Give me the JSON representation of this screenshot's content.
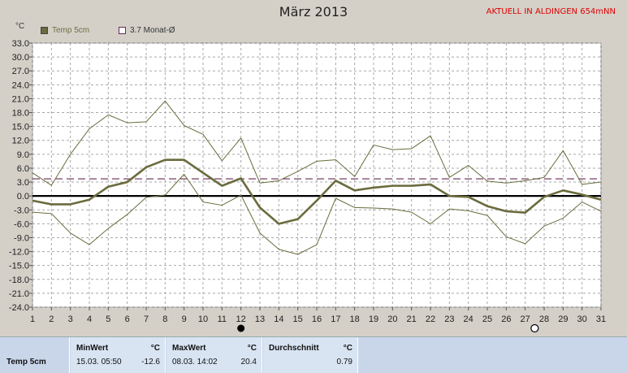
{
  "header": {
    "title": "März 2013",
    "station": "AKTUELL IN ALDINGEN 654mNN",
    "unit": "°C"
  },
  "legend": [
    {
      "label": "Temp 5cm"
    },
    {
      "label": "3.7 Monat-Ø"
    }
  ],
  "chart_data": {
    "type": "line",
    "title": "März 2013",
    "ylim": [
      -24,
      33
    ],
    "yticks": [
      "33.0",
      "30.0",
      "27.0",
      "24.0",
      "21.0",
      "18.0",
      "15.0",
      "12.0",
      "9.0",
      "6.0",
      "3.0",
      "0.0",
      "-3.0",
      "-6.0",
      "-9.0",
      "-12.0",
      "-15.0",
      "-18.0",
      "-21.0",
      "-24.0"
    ],
    "x": [
      1,
      2,
      3,
      4,
      5,
      6,
      7,
      8,
      9,
      10,
      11,
      12,
      13,
      14,
      15,
      16,
      17,
      18,
      19,
      20,
      21,
      22,
      23,
      24,
      25,
      26,
      27,
      28,
      29,
      30,
      31
    ],
    "series": [
      {
        "name": "Temp 5cm",
        "color": "#6b6b3e",
        "values": [
          -1.0,
          -1.8,
          -1.8,
          -0.8,
          2.0,
          3.0,
          6.2,
          7.8,
          7.8,
          5.0,
          2.2,
          3.8,
          -2.5,
          -6.0,
          -5.0,
          -1.0,
          3.3,
          1.2,
          1.8,
          2.2,
          2.2,
          2.5,
          0.0,
          -0.2,
          -2.2,
          -3.3,
          -3.6,
          -0.2,
          1.2,
          0.3,
          -0.8
        ]
      },
      {
        "color": "#6b6b3e",
        "values": [
          5.0,
          2.3,
          9.0,
          14.5,
          17.5,
          15.8,
          16.0,
          20.5,
          15.2,
          13.3,
          7.6,
          12.5,
          2.8,
          3.3,
          5.3,
          7.5,
          7.8,
          4.2,
          11.0,
          10.0,
          10.2,
          13.0,
          4.0,
          6.6,
          3.2,
          2.8,
          3.3,
          4.0,
          9.8,
          2.5,
          3.0
        ]
      },
      {
        "color": "#6b6b3e",
        "values": [
          -3.5,
          -3.8,
          -8.0,
          -10.5,
          -7.0,
          -4.0,
          -0.3,
          0.2,
          4.7,
          -1.3,
          -2.0,
          0.2,
          -8.0,
          -11.5,
          -12.6,
          -10.5,
          -0.5,
          -2.5,
          -2.6,
          -2.8,
          -3.5,
          -6.0,
          -2.8,
          -3.2,
          -4.2,
          -8.8,
          -10.3,
          -6.5,
          -4.8,
          -1.3,
          -3.3
        ]
      }
    ],
    "reference_lines": [
      {
        "label": "3.7 Monat-Ø",
        "value": 3.7,
        "color": "#6a2a55",
        "style": "dashed"
      },
      {
        "value": 0.0,
        "color": "#000000",
        "style": "solid"
      }
    ],
    "grid": true,
    "markers": [
      {
        "x": 12,
        "symbol": "full-moon-dot"
      },
      {
        "x": 27.5,
        "symbol": "new-moon-circle"
      }
    ]
  },
  "stats": {
    "row_label": "Temp 5cm",
    "min_header": "MinWert",
    "max_header": "MaxWert",
    "avg_header": "Durchschnitt",
    "unit": "°C",
    "min_time": "15.03.  05:50",
    "min_value": "-12.6",
    "max_time": "08.03.  14:02",
    "max_value": "20.4",
    "avg_value": "0.79"
  }
}
